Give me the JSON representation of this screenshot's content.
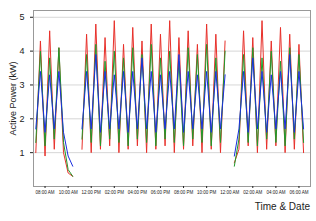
{
  "chart_data": {
    "type": "line",
    "y_label": "Active Power (kW)",
    "x_label": "Time & Date",
    "x": [
      7.2,
      7.6,
      8.0,
      8.4,
      8.8,
      9.2,
      9.6,
      10.0,
      10.4,
      10.8,
      11.2,
      11.6,
      12.0,
      12.4,
      12.8,
      13.2,
      13.6,
      14.0,
      14.4,
      14.8,
      15.2,
      15.6,
      16.0,
      16.4,
      16.8,
      17.2,
      17.6,
      18.0,
      18.4,
      18.8,
      19.2,
      19.6,
      20.0,
      20.4,
      20.8,
      21.2,
      21.6,
      22.0,
      22.4,
      22.8,
      23.2,
      23.6,
      24.0,
      24.4,
      24.8,
      25.2,
      25.6,
      26.0,
      26.4,
      26.8,
      27.2,
      27.6,
      28.0,
      28.4,
      28.8,
      29.2,
      29.6,
      30.0,
      30.4
    ],
    "series": [
      {
        "color": "#e8302a",
        "values": [
          1.0,
          4.3,
          0.9,
          4.6,
          1.1,
          4.1,
          1.0,
          0.4,
          0.3,
          null,
          1.1,
          4.5,
          1.0,
          4.8,
          1.1,
          4.4,
          1.2,
          4.9,
          1.0,
          4.2,
          1.1,
          4.7,
          1.2,
          4.3,
          1.0,
          4.8,
          1.1,
          4.5,
          1.2,
          4.9,
          1.0,
          4.4,
          1.1,
          4.6,
          1.2,
          4.2,
          1.0,
          4.8,
          1.1,
          4.5,
          1.0,
          4.3,
          null,
          0.7,
          1.1,
          4.6,
          1.2,
          4.4,
          1.0,
          4.9,
          1.1,
          4.3,
          1.2,
          4.7,
          1.0,
          4.5,
          1.1,
          4.2,
          1.0
        ]
      },
      {
        "color": "#1f9a2a",
        "values": [
          1.3,
          4.0,
          1.2,
          3.8,
          1.4,
          4.1,
          1.3,
          0.5,
          0.3,
          null,
          1.4,
          3.9,
          1.3,
          4.2,
          1.2,
          3.7,
          1.4,
          4.0,
          1.3,
          3.8,
          1.2,
          4.1,
          1.4,
          3.9,
          1.3,
          4.2,
          1.2,
          3.8,
          1.4,
          4.0,
          1.3,
          3.7,
          1.2,
          4.1,
          1.4,
          3.9,
          1.3,
          4.2,
          1.2,
          3.8,
          1.3,
          4.0,
          null,
          0.6,
          1.4,
          3.9,
          1.3,
          4.1,
          1.2,
          3.8,
          1.4,
          4.0,
          1.3,
          3.7,
          1.2,
          4.1,
          1.4,
          3.9,
          1.3
        ]
      },
      {
        "color": "#1a2ee0",
        "values": [
          1.7,
          3.4,
          1.6,
          3.3,
          1.7,
          3.4,
          1.6,
          0.9,
          0.6,
          null,
          1.7,
          3.4,
          1.7,
          3.9,
          1.6,
          3.4,
          1.7,
          3.3,
          1.7,
          3.4,
          1.6,
          3.4,
          1.7,
          3.8,
          1.7,
          3.4,
          1.6,
          3.3,
          1.7,
          3.4,
          1.7,
          3.9,
          1.6,
          3.4,
          1.7,
          3.3,
          1.7,
          3.4,
          1.6,
          3.4,
          1.7,
          3.3,
          null,
          0.9,
          1.7,
          3.4,
          1.6,
          3.8,
          1.7,
          3.4,
          1.6,
          3.3,
          1.7,
          3.4,
          1.7,
          3.9,
          1.6,
          3.4,
          1.7
        ]
      }
    ],
    "xlim": [
      7,
      31
    ],
    "xticks": [
      {
        "value": 8,
        "label": "08:00 AM"
      },
      {
        "value": 10,
        "label": "10:00 AM"
      },
      {
        "value": 12,
        "label": "12:00 PM"
      },
      {
        "value": 14,
        "label": "02:00 PM"
      },
      {
        "value": 16,
        "label": "04:00 PM"
      },
      {
        "value": 18,
        "label": "06:00 PM"
      },
      {
        "value": 20,
        "label": "08:00 PM"
      },
      {
        "value": 22,
        "label": "10:00 PM"
      },
      {
        "value": 24,
        "label": "12:00 AM"
      },
      {
        "value": 26,
        "label": "02:00 AM"
      },
      {
        "value": 28,
        "label": "04:00 AM"
      },
      {
        "value": 30,
        "label": "06:00 AM"
      }
    ],
    "ylim": [
      0,
      5.2
    ],
    "yticks": [
      1,
      2,
      3,
      4,
      5
    ],
    "grid": true
  }
}
